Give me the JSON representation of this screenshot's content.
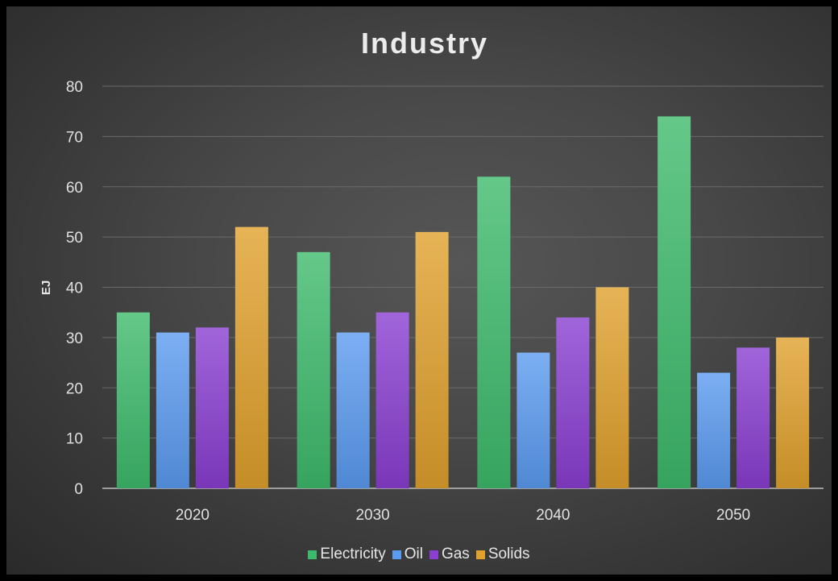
{
  "chart_data": {
    "type": "bar",
    "title": "Industry",
    "xlabel": "",
    "ylabel": "EJ",
    "categories": [
      "2020",
      "2030",
      "2040",
      "2050"
    ],
    "ylim": [
      0,
      80
    ],
    "yticks": [
      0,
      10,
      20,
      30,
      40,
      50,
      60,
      70,
      80
    ],
    "grid": true,
    "legend_position": "bottom",
    "series": [
      {
        "name": "Electricity",
        "values": [
          35,
          47,
          62,
          74
        ],
        "color": "#3dba6c"
      },
      {
        "name": "Oil",
        "values": [
          31,
          31,
          27,
          23
        ],
        "color": "#5b9bf0"
      },
      {
        "name": "Gas",
        "values": [
          32,
          35,
          34,
          28
        ],
        "color": "#8a3fd1"
      },
      {
        "name": "Solids",
        "values": [
          52,
          51,
          40,
          30
        ],
        "color": "#e0a02c"
      }
    ]
  }
}
